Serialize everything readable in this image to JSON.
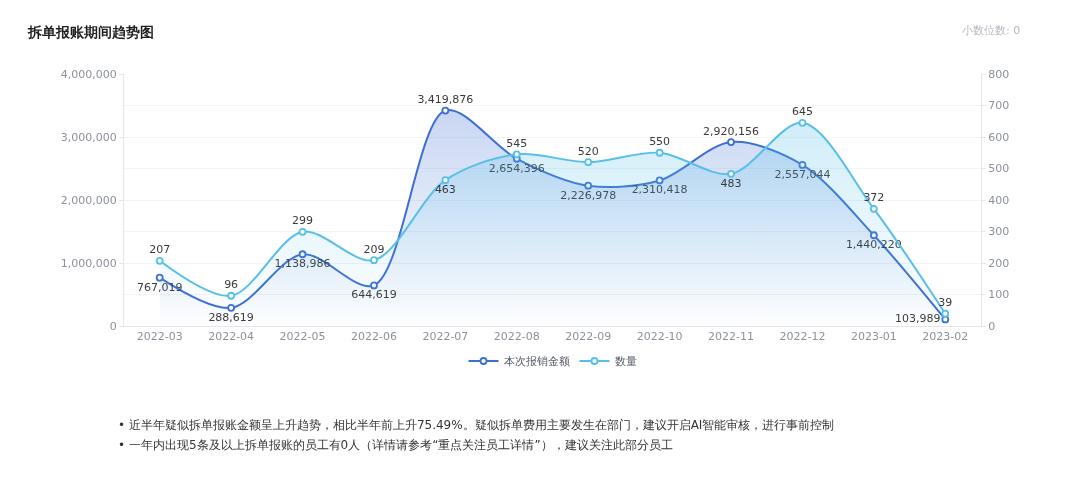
{
  "chart_data": {
    "type": "area",
    "title": "拆单报账期间趋势图",
    "categories": [
      "2022-03",
      "2022-04",
      "2022-05",
      "2022-06",
      "2022-07",
      "2022-08",
      "2022-09",
      "2022-10",
      "2022-11",
      "2022-12",
      "2023-01",
      "2023-02"
    ],
    "series": [
      {
        "name": "本次报销金额",
        "color": "#3d6fd4",
        "values": [
          767019,
          288619,
          1138986,
          644619,
          3419876,
          2654396,
          2226978,
          2310418,
          2920156,
          2557044,
          1440220,
          103989
        ],
        "value_labels": [
          "767,019",
          "288,619",
          "1,138,986",
          "644,619",
          "3,419,876",
          "2,654,396",
          "2,226,978",
          "2,310,418",
          "2,920,156",
          "2,557,044",
          "1,440,220",
          "103,989"
        ]
      },
      {
        "name": "数量",
        "axis": "y2",
        "color": "#58bfe9",
        "values": [
          207,
          96,
          299,
          209,
          463,
          545,
          520,
          550,
          483,
          645,
          372,
          39
        ],
        "value_labels": [
          "207",
          "96",
          "299",
          "209",
          "463",
          "545",
          "520",
          "550",
          "483",
          "645",
          "372",
          "39"
        ]
      }
    ],
    "ylim": [
      0,
      4000000
    ],
    "yticks": [
      0,
      {
        "value": 1000000,
        "label": "1,000,000"
      },
      {
        "value": 2000000,
        "label": "2,000,000"
      },
      {
        "value": 3000000,
        "label": "3,000,000"
      },
      {
        "value": 4000000,
        "label": "4,000,000"
      }
    ],
    "y2lim": [
      0,
      800
    ],
    "y2ticks": [
      0,
      100,
      200,
      300,
      400,
      500,
      600,
      700,
      800
    ],
    "grid": "y",
    "legend": "bottom",
    "marker": "circle",
    "line_style": "solid",
    "annotations": [
      "小数位数: 0",
      "• 近半年疑似拆单报账金额呈上升趋势，相比半年前上升75.49%。疑似拆单费用主要发生在部门，建议开启AI智能审核，进行事前控制",
      "• 一年内出现5条及以上拆单报账的员工有0人（详情请参考“重点关注员工详情”），建议关注此部分员工"
    ]
  }
}
